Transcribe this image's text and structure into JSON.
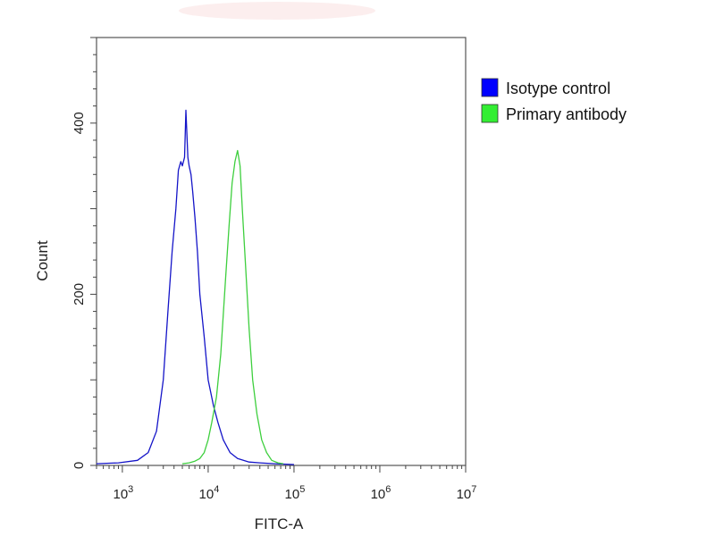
{
  "chart_data": {
    "type": "line",
    "xlabel": "FITC-A",
    "ylabel": "Count",
    "x_scale": "log",
    "xlim": [
      500,
      10000000
    ],
    "ylim": [
      0,
      500
    ],
    "x_ticks": [
      {
        "value": 1000,
        "base": "10",
        "exp": "3"
      },
      {
        "value": 10000,
        "base": "10",
        "exp": "4"
      },
      {
        "value": 100000,
        "base": "10",
        "exp": "5"
      },
      {
        "value": 1000000,
        "base": "10",
        "exp": "6"
      },
      {
        "value": 10000000,
        "base": "10",
        "exp": "7"
      }
    ],
    "y_ticks": [
      0,
      200,
      400
    ],
    "grid": false,
    "legend_position": "right",
    "series": [
      {
        "name": "Isotype control",
        "color": "#1414c8",
        "legend_color": "#0000ff",
        "x": [
          500,
          900,
          1500,
          2000,
          2500,
          3000,
          3400,
          3800,
          4200,
          4500,
          4800,
          5000,
          5300,
          5500,
          5800,
          6000,
          6300,
          6600,
          7000,
          7500,
          8000,
          9000,
          10000,
          11500,
          13000,
          15000,
          18000,
          22000,
          30000,
          40000,
          60000,
          100000
        ],
        "y": [
          2,
          3,
          6,
          15,
          40,
          100,
          180,
          250,
          300,
          345,
          355,
          350,
          360,
          415,
          360,
          350,
          340,
          320,
          290,
          250,
          200,
          150,
          100,
          70,
          50,
          30,
          15,
          8,
          4,
          3,
          2,
          1
        ]
      },
      {
        "name": "Primary antibody",
        "color": "#3ecf3e",
        "legend_color": "#33ee33",
        "x": [
          5000,
          6000,
          7000,
          8000,
          9000,
          10000,
          11000,
          12500,
          14000,
          16000,
          17500,
          19000,
          20500,
          22000,
          23500,
          25000,
          27000,
          30000,
          33000,
          37000,
          42000,
          48000,
          55000,
          65000,
          75000
        ],
        "y": [
          2,
          3,
          5,
          8,
          15,
          30,
          50,
          80,
          130,
          220,
          280,
          330,
          355,
          368,
          350,
          300,
          240,
          160,
          100,
          60,
          30,
          15,
          6,
          3,
          2
        ]
      }
    ]
  }
}
